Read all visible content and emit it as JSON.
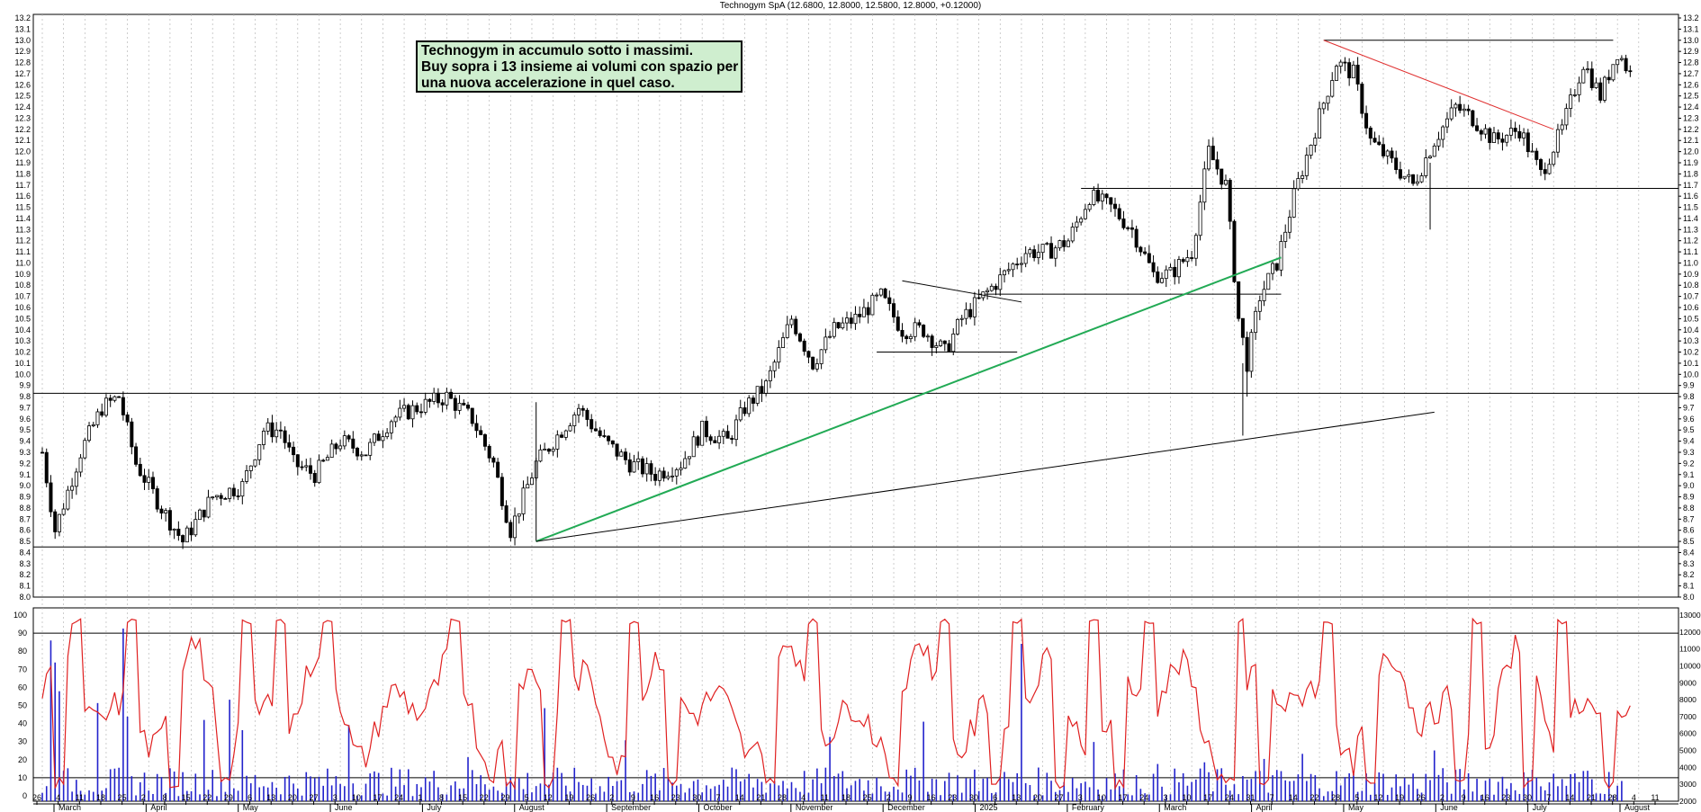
{
  "title": "Technogym SpA",
  "quote": "(12.6800, 12.8000, 12.5800, 12.8000, +0.12000)",
  "annotation": {
    "lines": [
      "Technogym in accumulo sotto i massimi.",
      "Buy sopra i 13 insieme ai volumi con spazio per",
      "una nuova accelerazione in quel caso."
    ]
  },
  "colors": {
    "candle": "#000000",
    "oscillator": "#e02020",
    "volume": "#2222cc",
    "trend_green": "#22aa55",
    "trend_red": "#e03030",
    "note_bg": "#cfeecf"
  },
  "chart_data": [
    {
      "type": "candlestick",
      "price_axis": {
        "min": 8.0,
        "max": 13.2,
        "step": 0.1
      },
      "month_labels": [
        "March",
        "April",
        "May",
        "June",
        "July",
        "August",
        "September",
        "October",
        "November",
        "December",
        "2025",
        "February",
        "March",
        "April",
        "May",
        "June",
        "July",
        "August"
      ],
      "day_labels": [
        "26",
        "4",
        "11",
        "18",
        "25",
        "2",
        "8",
        "15",
        "22",
        "29",
        "6",
        "13",
        "20",
        "27",
        "3",
        "10",
        "17",
        "24",
        "1",
        "8",
        "15",
        "22",
        "29",
        "5",
        "12",
        "19",
        "26",
        "2",
        "9",
        "16",
        "23",
        "30",
        "7",
        "14",
        "21",
        "28",
        "4",
        "11",
        "18",
        "25",
        "2",
        "9",
        "16",
        "23",
        "30",
        "6",
        "13",
        "20",
        "27",
        "3",
        "10",
        "17",
        "24",
        "3",
        "10",
        "17",
        "24",
        "31",
        "7",
        "14",
        "22",
        "28",
        "5",
        "12",
        "19",
        "26",
        "2",
        "9",
        "16",
        "23",
        "30",
        "7",
        "14",
        "21",
        "28",
        "4",
        "11"
      ],
      "path": [
        {
          "x": 0,
          "y": 9.3
        },
        {
          "x": 3,
          "y": 8.6
        },
        {
          "x": 9,
          "y": 9.3
        },
        {
          "x": 14,
          "y": 9.7
        },
        {
          "x": 18,
          "y": 9.8
        },
        {
          "x": 22,
          "y": 9.2
        },
        {
          "x": 28,
          "y": 8.8
        },
        {
          "x": 33,
          "y": 8.5
        },
        {
          "x": 40,
          "y": 8.9
        },
        {
          "x": 47,
          "y": 9.0
        },
        {
          "x": 52,
          "y": 9.5
        },
        {
          "x": 56,
          "y": 9.5
        },
        {
          "x": 59,
          "y": 9.2
        },
        {
          "x": 64,
          "y": 9.1
        },
        {
          "x": 70,
          "y": 9.4
        },
        {
          "x": 76,
          "y": 9.3
        },
        {
          "x": 82,
          "y": 9.6
        },
        {
          "x": 88,
          "y": 9.7
        },
        {
          "x": 95,
          "y": 9.8
        },
        {
          "x": 101,
          "y": 9.6
        },
        {
          "x": 106,
          "y": 9.2
        },
        {
          "x": 110,
          "y": 8.6
        },
        {
          "x": 116,
          "y": 9.2
        },
        {
          "x": 122,
          "y": 9.5
        },
        {
          "x": 126,
          "y": 9.7
        },
        {
          "x": 132,
          "y": 9.4
        },
        {
          "x": 138,
          "y": 9.2
        },
        {
          "x": 144,
          "y": 9.1
        },
        {
          "x": 150,
          "y": 9.2
        },
        {
          "x": 155,
          "y": 9.5
        },
        {
          "x": 161,
          "y": 9.4
        },
        {
          "x": 165,
          "y": 9.7
        },
        {
          "x": 170,
          "y": 9.9
        },
        {
          "x": 176,
          "y": 10.5
        },
        {
          "x": 181,
          "y": 10.1
        },
        {
          "x": 186,
          "y": 10.4
        },
        {
          "x": 191,
          "y": 10.5
        },
        {
          "x": 197,
          "y": 10.7
        },
        {
          "x": 202,
          "y": 10.4
        },
        {
          "x": 207,
          "y": 10.4
        },
        {
          "x": 212,
          "y": 10.2
        },
        {
          "x": 216,
          "y": 10.5
        },
        {
          "x": 221,
          "y": 10.7
        },
        {
          "x": 226,
          "y": 10.9
        },
        {
          "x": 231,
          "y": 11.1
        },
        {
          "x": 236,
          "y": 11.1
        },
        {
          "x": 241,
          "y": 11.2
        },
        {
          "x": 246,
          "y": 11.6
        },
        {
          "x": 251,
          "y": 11.5
        },
        {
          "x": 256,
          "y": 11.3
        },
        {
          "x": 261,
          "y": 10.9
        },
        {
          "x": 265,
          "y": 10.9
        },
        {
          "x": 270,
          "y": 11.1
        },
        {
          "x": 274,
          "y": 12.0
        },
        {
          "x": 278,
          "y": 11.7
        },
        {
          "x": 281,
          "y": 10.5
        },
        {
          "x": 283,
          "y": 10.1
        },
        {
          "x": 286,
          "y": 10.7
        },
        {
          "x": 290,
          "y": 11.0
        },
        {
          "x": 294,
          "y": 11.6
        },
        {
          "x": 299,
          "y": 12.2
        },
        {
          "x": 304,
          "y": 12.8
        },
        {
          "x": 308,
          "y": 12.7
        },
        {
          "x": 312,
          "y": 12.1
        },
        {
          "x": 317,
          "y": 11.9
        },
        {
          "x": 322,
          "y": 11.7
        },
        {
          "x": 327,
          "y": 12.1
        },
        {
          "x": 332,
          "y": 12.4
        },
        {
          "x": 336,
          "y": 12.3
        },
        {
          "x": 341,
          "y": 12.1
        },
        {
          "x": 347,
          "y": 12.2
        },
        {
          "x": 352,
          "y": 11.8
        },
        {
          "x": 357,
          "y": 12.2
        },
        {
          "x": 362,
          "y": 12.8
        },
        {
          "x": 366,
          "y": 12.5
        },
        {
          "x": 370,
          "y": 12.9
        },
        {
          "x": 373,
          "y": 12.7
        }
      ],
      "horizontal_lines": [
        9.83,
        8.45,
        11.67,
        13.0,
        10.72,
        10.2
      ],
      "trendlines": [
        {
          "color": "green",
          "from": {
            "x": 116,
            "y": 8.5
          },
          "to": {
            "x": 291,
            "y": 11.05
          }
        },
        {
          "color": "black",
          "from": {
            "x": 116,
            "y": 8.5
          },
          "to": {
            "x": 327,
            "y": 9.66
          }
        },
        {
          "color": "black",
          "from": {
            "x": 202,
            "y": 10.84
          },
          "to": {
            "x": 230,
            "y": 10.65
          }
        },
        {
          "color": "red",
          "from": {
            "x": 301,
            "y": 13.0
          },
          "to": {
            "x": 355,
            "y": 12.2
          }
        }
      ]
    },
    {
      "type": "line",
      "name": "oscillator",
      "y_axis": {
        "min": 0,
        "max": 100,
        "step": 10,
        "band_upper": 90,
        "band_lower": 10
      },
      "osc_x_points": 300,
      "peak_x": [
        8,
        21,
        48,
        56,
        67,
        97,
        123,
        139,
        181,
        212,
        229,
        247,
        260,
        281,
        302,
        337,
        357
      ],
      "trough_x": [
        4,
        31,
        43,
        110,
        119,
        148,
        171,
        200,
        224,
        239,
        253,
        279,
        287,
        312,
        333,
        349,
        368
      ]
    },
    {
      "type": "bar",
      "name": "volume",
      "y_axis": {
        "min": 2000,
        "max": 13000,
        "step": 1000
      },
      "bar_count": 372,
      "spike_x": [
        2,
        3,
        4,
        13,
        19,
        20,
        38,
        44,
        47,
        72,
        100,
        118,
        137,
        185,
        207,
        230,
        247,
        262,
        273,
        287,
        296,
        327,
        351,
        363
      ],
      "spike_values": [
        11500,
        10200,
        8500,
        7800,
        12200,
        7000,
        6800,
        8000,
        6200,
        6500,
        4600,
        7500,
        5600,
        5800,
        6700,
        11300,
        5500,
        4200,
        4300,
        4500,
        4800,
        5000,
        3400,
        3800
      ]
    }
  ]
}
